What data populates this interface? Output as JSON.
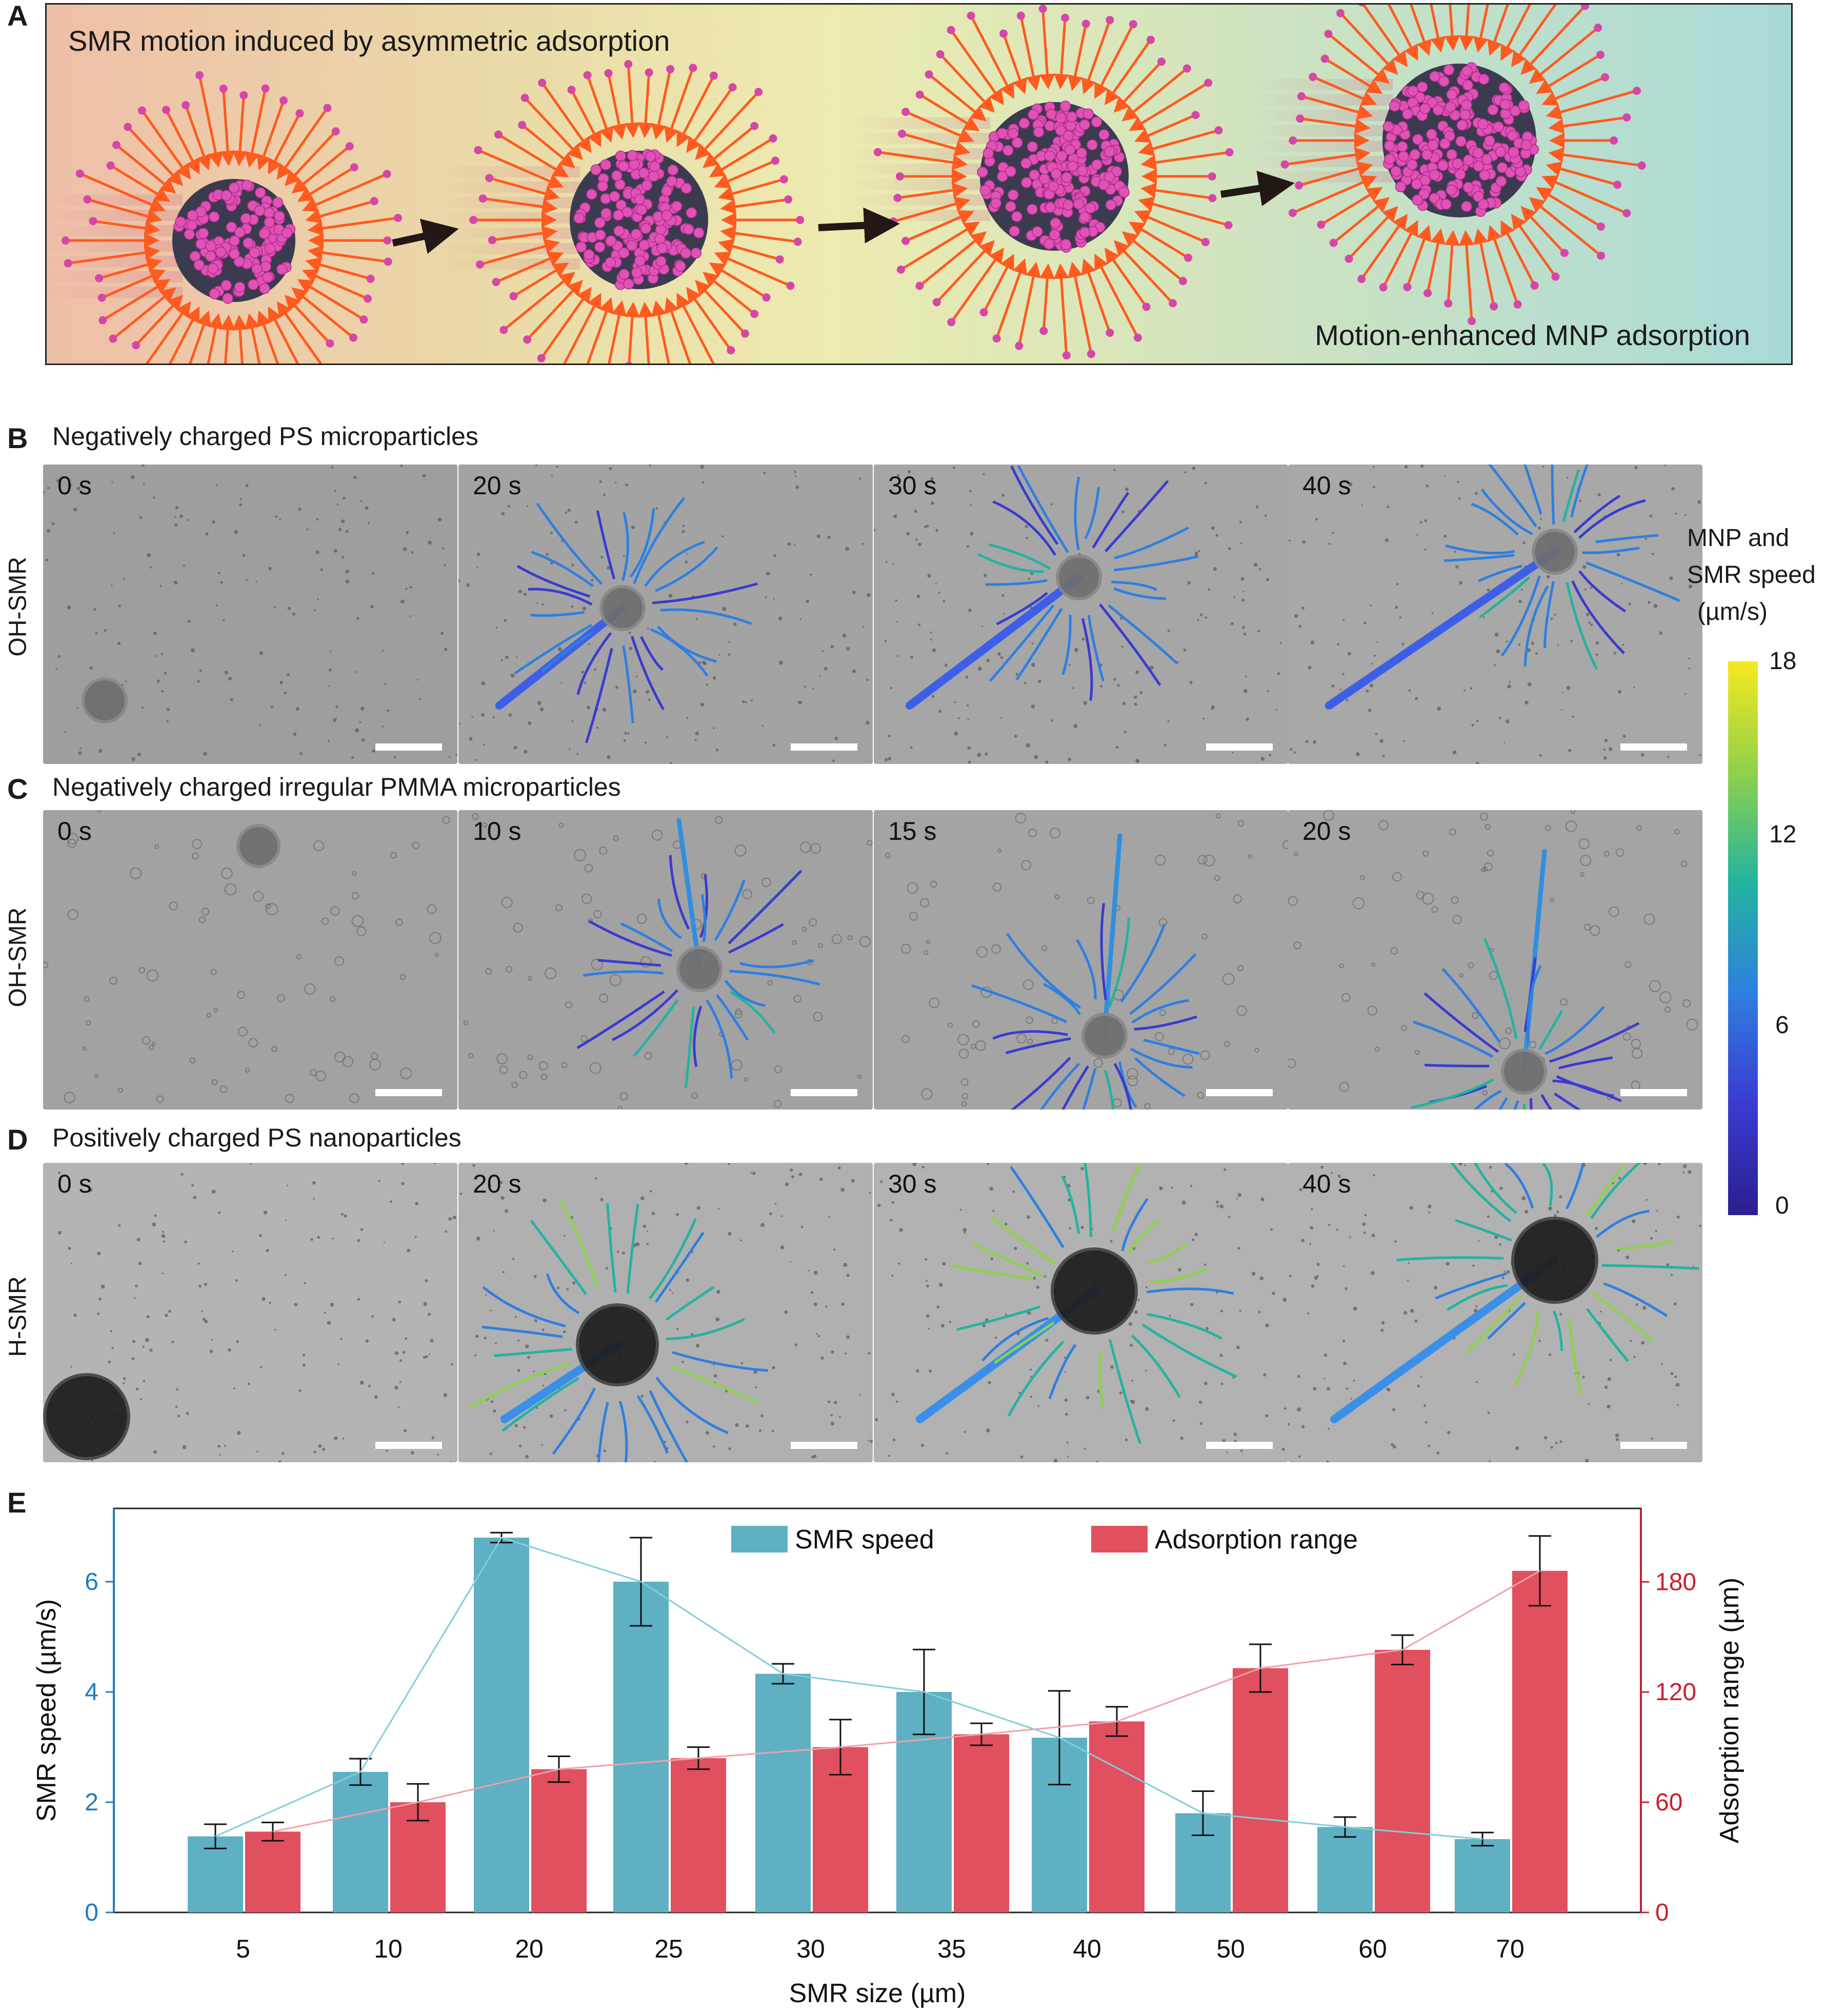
{
  "panel_a": {
    "letter": "A",
    "title": "SMR motion induced by asymmetric adsorption",
    "caption": "Motion-enhanced MNP adsorption"
  },
  "panel_b": {
    "letter": "B",
    "title": "Negatively charged PS microparticles",
    "row_label": "OH-SMR",
    "times": [
      "0 s",
      "20 s",
      "30 s",
      "40 s"
    ]
  },
  "panel_c": {
    "letter": "C",
    "title": "Negatively charged irregular PMMA microparticles",
    "row_label": "OH-SMR",
    "times": [
      "0 s",
      "10 s",
      "15 s",
      "20 s"
    ]
  },
  "panel_d": {
    "letter": "D",
    "title": "Positively charged PS nanoparticles",
    "row_label": "H-SMR",
    "times": [
      "0 s",
      "20 s",
      "30 s",
      "40 s"
    ]
  },
  "colorbar": {
    "title_line1": "MNP and",
    "title_line2": "SMR speed",
    "title_line3": "(µm/s)",
    "ticks": [
      "18",
      "12",
      "6",
      "0"
    ],
    "colors": [
      "#f7e81f",
      "#8fd14a",
      "#23b3a0",
      "#2e7fe0",
      "#3a3ad0",
      "#2b1f8f"
    ]
  },
  "panel_e": {
    "letter": "E"
  },
  "chart_data": {
    "type": "bar",
    "categories": [
      "5",
      "10",
      "20",
      "25",
      "30",
      "35",
      "40",
      "50",
      "60",
      "70"
    ],
    "xlabel": "SMR size (µm)",
    "ylabel_left": "SMR speed (µm/s)",
    "ylabel_right": "Adsorption range (µm)",
    "ylim_left": [
      0,
      7.33
    ],
    "ylim_right": [
      0,
      220
    ],
    "yticks_left": [
      0,
      2,
      4,
      6
    ],
    "yticks_right": [
      0,
      60,
      120,
      180
    ],
    "grid": false,
    "legend_position": "top",
    "series": [
      {
        "name": "SMR speed",
        "axis": "left",
        "color": "#5fb0c2",
        "values": [
          1.38,
          2.55,
          6.8,
          6.0,
          4.33,
          4.0,
          3.17,
          1.8,
          1.55,
          1.33
        ],
        "errors": [
          0.22,
          0.24,
          0.09,
          0.8,
          0.18,
          0.77,
          0.85,
          0.4,
          0.18,
          0.12
        ]
      },
      {
        "name": "Adsorption range",
        "axis": "right",
        "color": "#e0505f",
        "values": [
          44,
          60,
          78,
          84,
          90,
          97,
          104,
          133,
          143,
          186
        ],
        "errors": [
          5,
          10,
          7,
          6,
          15,
          6,
          8,
          13,
          8,
          19
        ]
      }
    ],
    "trend_colors": {
      "left": "#7fcfd9",
      "right": "#f2a0a8"
    },
    "axis_colors": {
      "left": "#1c7cc4",
      "right": "#cc1f2e"
    }
  }
}
